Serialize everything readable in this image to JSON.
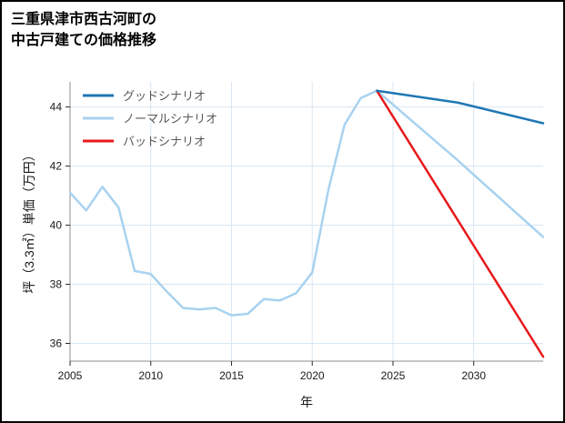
{
  "chart_data": {
    "type": "line",
    "title": "三重県津市西古河町の中古戸建ての価格推移",
    "title_lines": [
      "三重県津市西古河町の",
      "中古戸建ての価格推移"
    ],
    "xlabel": "年",
    "ylabel": "坪（3.3㎡）単価（万円）",
    "xlim": [
      2005,
      2034.3
    ],
    "ylim": [
      35.4,
      44.85
    ],
    "xticks": [
      2005,
      2010,
      2015,
      2020,
      2025,
      2030
    ],
    "yticks": [
      36,
      38,
      40,
      42,
      44
    ],
    "grid": true,
    "legend_position": "upper-left",
    "colors": {
      "grid": "#d9e6f2",
      "axis_spine": "#8c8c8c",
      "tick": "#262626",
      "tick_text": "#1a1a1a",
      "legend_text": "#595959",
      "background": "#ffffff",
      "border": "#000000"
    },
    "series": [
      {
        "id": "good",
        "name": "グッドシナリオ",
        "color": "#1f77b4",
        "z": 3,
        "x": [
          2024,
          2029,
          2034.3
        ],
        "y": [
          44.55,
          44.15,
          43.45
        ]
      },
      {
        "id": "normal",
        "name": "ノーマルシナリオ",
        "color": "#a8d2f0",
        "z": 1,
        "x": [
          2005,
          2006,
          2007,
          2008,
          2009,
          2010,
          2011,
          2012,
          2013,
          2014,
          2015,
          2016,
          2017,
          2018,
          2019,
          2020,
          2021,
          2022,
          2023,
          2024,
          2029,
          2034.3
        ],
        "y": [
          41.1,
          40.5,
          41.3,
          40.6,
          38.45,
          38.35,
          37.75,
          37.2,
          37.15,
          37.2,
          36.95,
          37.0,
          37.5,
          37.45,
          37.7,
          38.4,
          41.2,
          43.4,
          44.3,
          44.55,
          42.2,
          39.6
        ]
      },
      {
        "id": "bad",
        "name": "バッドシナリオ",
        "color": "#e8191c",
        "z": 2,
        "x": [
          2024,
          2034.3
        ],
        "y": [
          44.55,
          35.55
        ]
      }
    ]
  }
}
